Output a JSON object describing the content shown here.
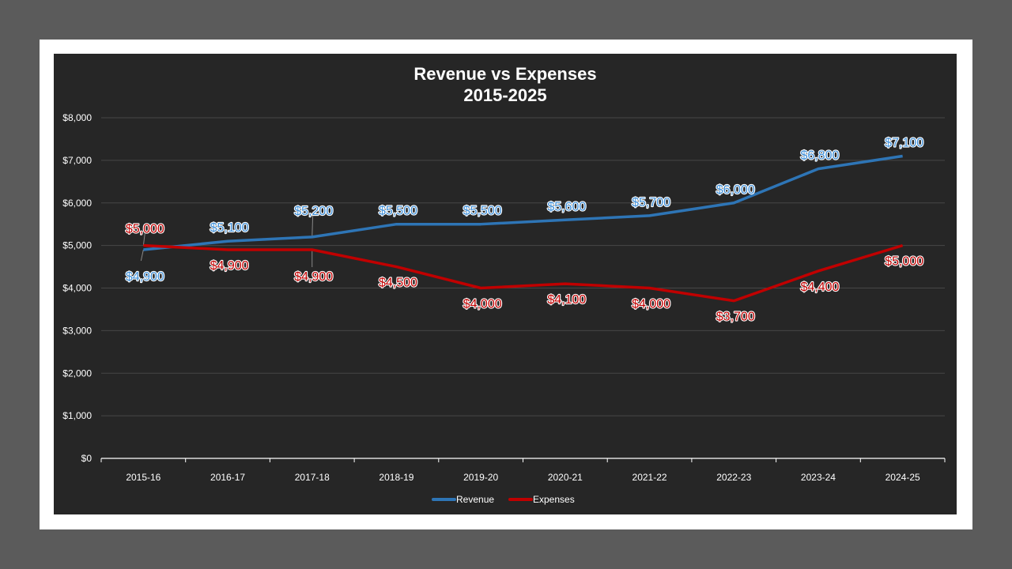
{
  "chart_data": {
    "type": "line",
    "title": "Revenue vs Expenses",
    "subtitle": "2015-2025",
    "categories": [
      "2015-16",
      "2016-17",
      "2017-18",
      "2018-19",
      "2019-20",
      "2020-21",
      "2021-22",
      "2022-23",
      "2023-24",
      "2024-25"
    ],
    "series": [
      {
        "name": "Revenue",
        "color": "#2e75b6",
        "values": [
          4900,
          5100,
          5200,
          5500,
          5500,
          5600,
          5700,
          6000,
          6800,
          7100
        ]
      },
      {
        "name": "Expenses",
        "color": "#c00000",
        "values": [
          5000,
          4900,
          4900,
          4500,
          4000,
          4100,
          4000,
          3700,
          4400,
          5000
        ]
      }
    ],
    "ylim": [
      0,
      8000
    ],
    "yticks": [
      "$0",
      "$1,000",
      "$2,000",
      "$3,000",
      "$4,000",
      "$5,000",
      "$6,000",
      "$7,000",
      "$8,000"
    ],
    "ytick_values": [
      0,
      1000,
      2000,
      3000,
      4000,
      5000,
      6000,
      7000,
      8000
    ],
    "data_label_format": "$#,##0",
    "grid": true,
    "legend": "bottom",
    "background": "#262626"
  }
}
